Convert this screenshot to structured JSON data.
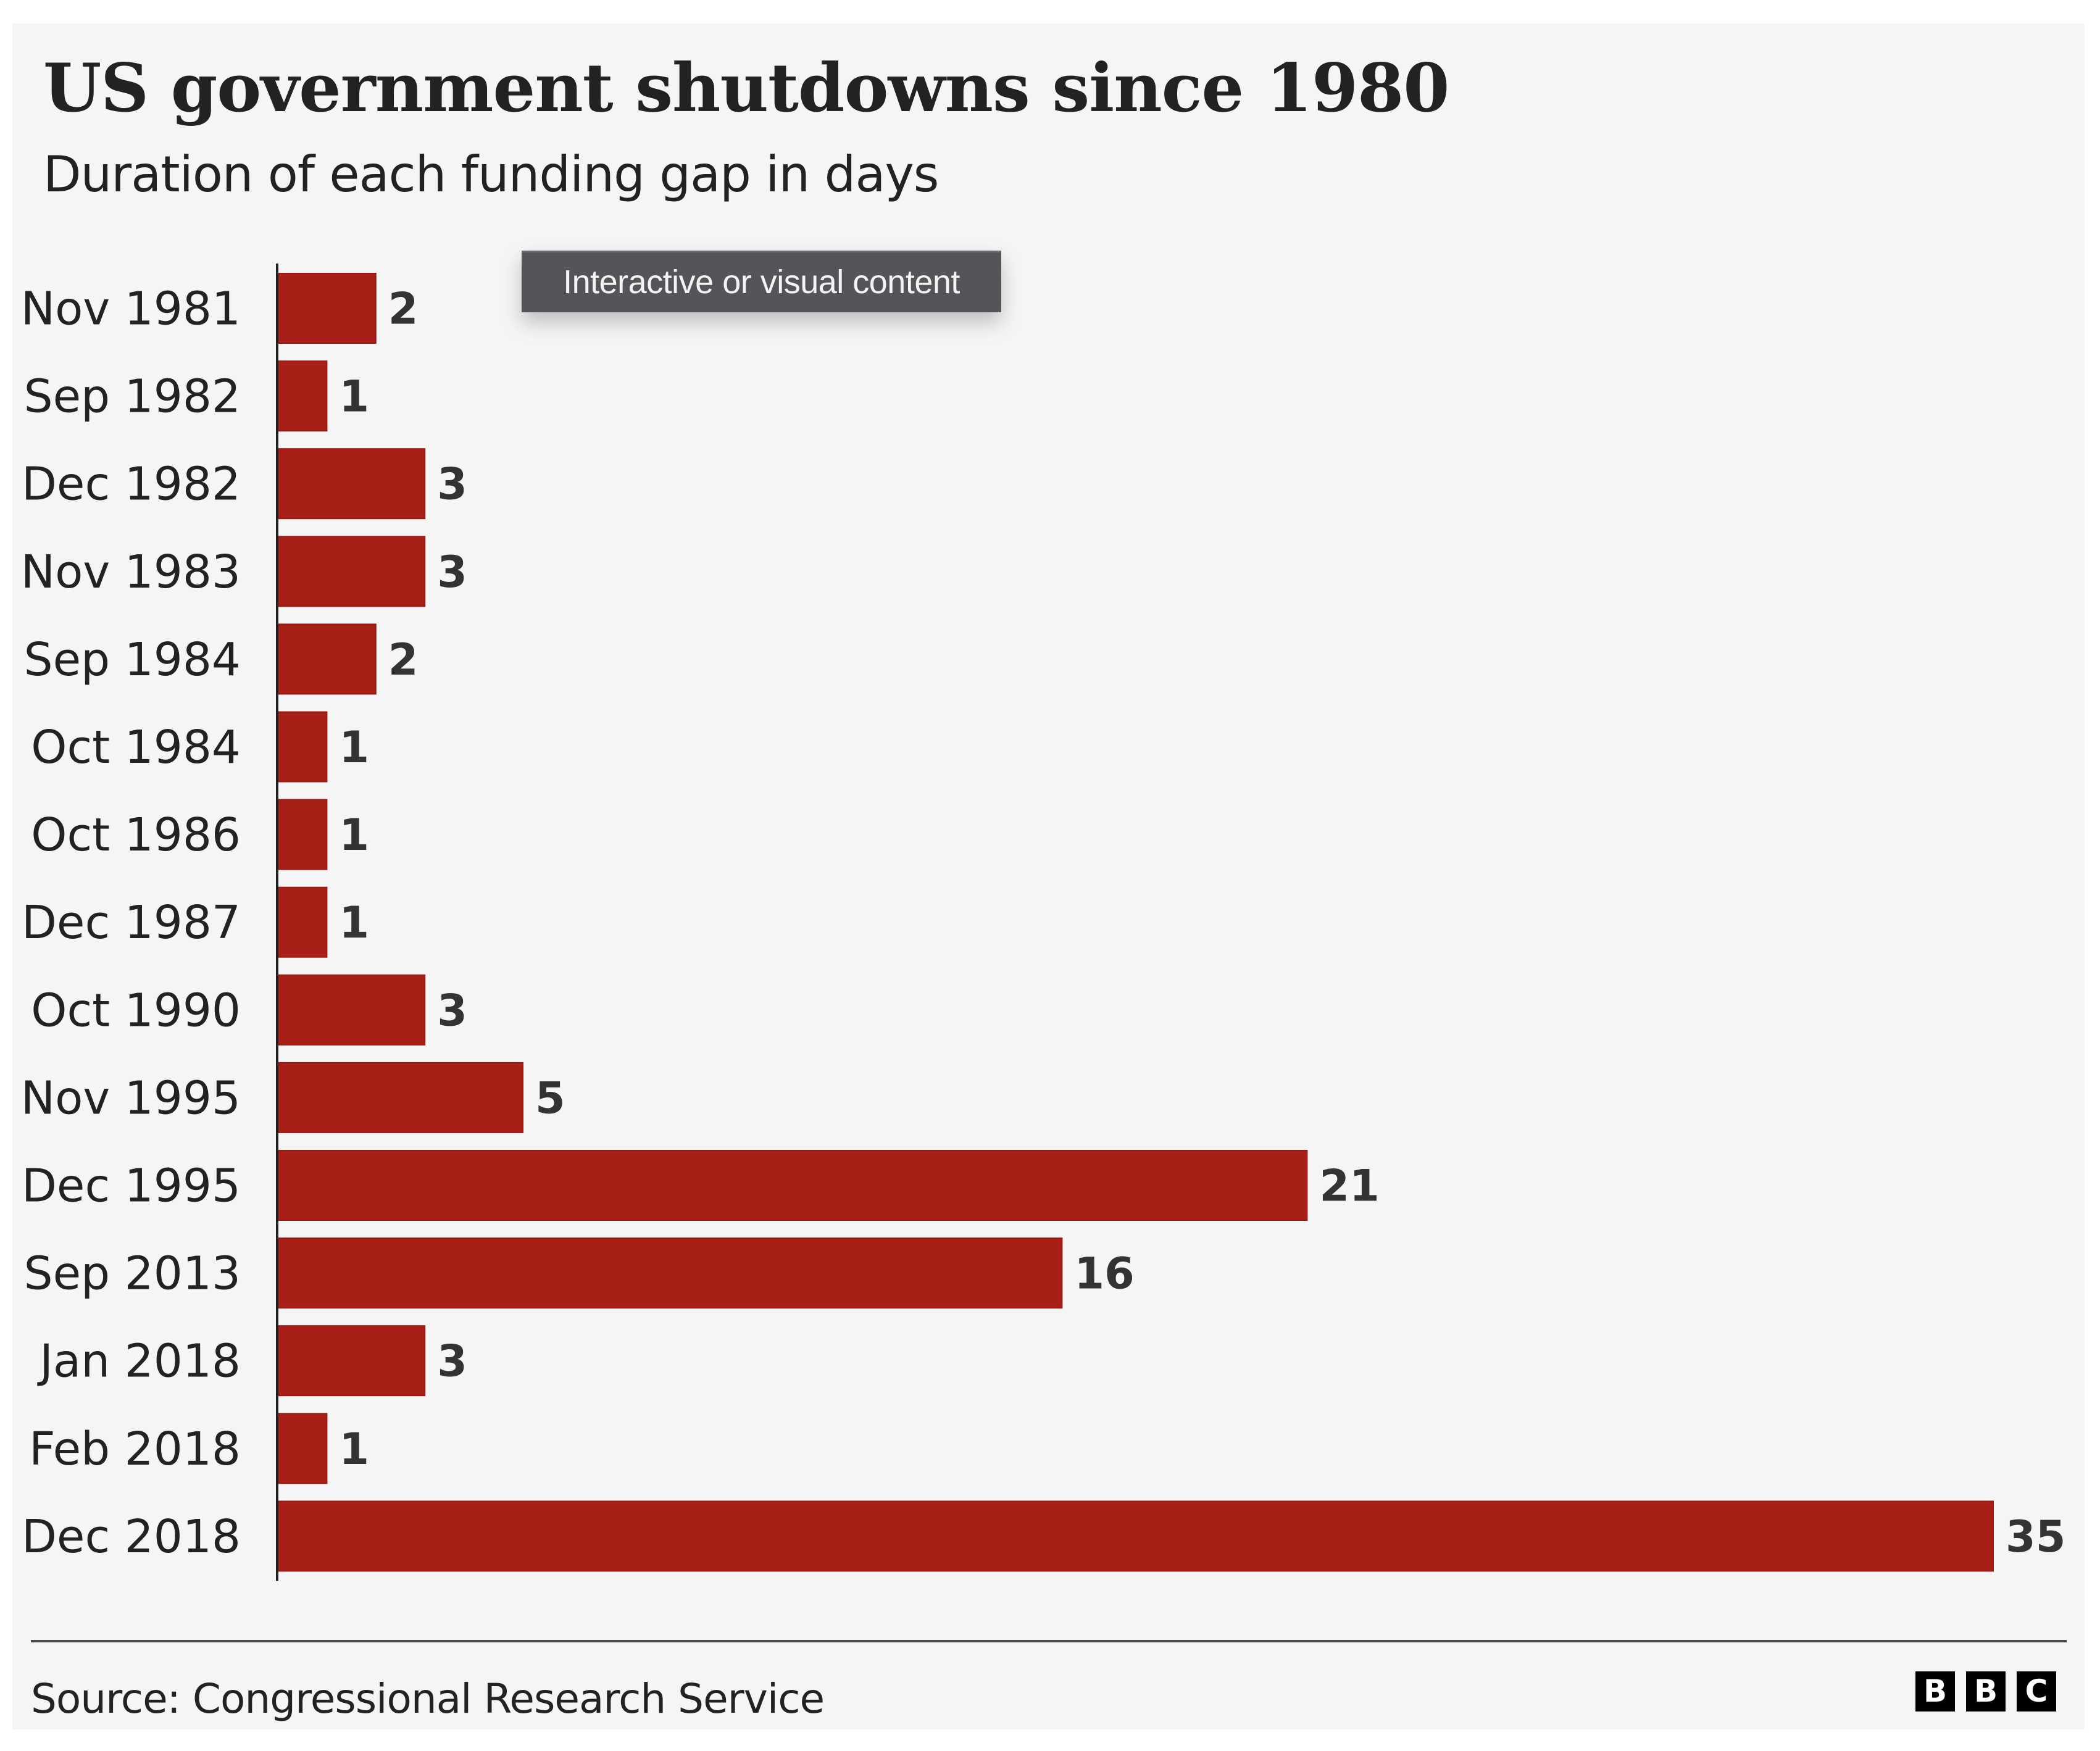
{
  "header": {
    "title": "US government shutdowns since 1980",
    "subtitle": "Duration of each funding gap in days"
  },
  "tooltip": {
    "text": "Interactive or visual content"
  },
  "footer": {
    "source": "Source: Congressional Research Service",
    "logo_letters": [
      "B",
      "B",
      "C"
    ]
  },
  "colors": {
    "bar": "#a81f17",
    "bar_edge": "#9a1a13",
    "background": "#f5f5f5",
    "axis": "#222222"
  },
  "chart_data": {
    "type": "bar",
    "orientation": "horizontal",
    "title": "US government shutdowns since 1980",
    "subtitle": "Duration of each funding gap in days",
    "xlabel": "",
    "ylabel": "",
    "xlim": [
      0,
      35
    ],
    "grid": false,
    "legend": "none",
    "data_labels": true,
    "categories": [
      "Nov 1981",
      "Sep 1982",
      "Dec 1982",
      "Nov 1983",
      "Sep 1984",
      "Oct 1984",
      "Oct 1986",
      "Dec 1987",
      "Oct 1990",
      "Nov 1995",
      "Dec 1995",
      "Sep 2013",
      "Jan 2018",
      "Feb 2018",
      "Dec 2018"
    ],
    "values": [
      2,
      1,
      3,
      3,
      2,
      1,
      1,
      1,
      3,
      5,
      21,
      16,
      3,
      1,
      35
    ],
    "source": "Congressional Research Service"
  }
}
